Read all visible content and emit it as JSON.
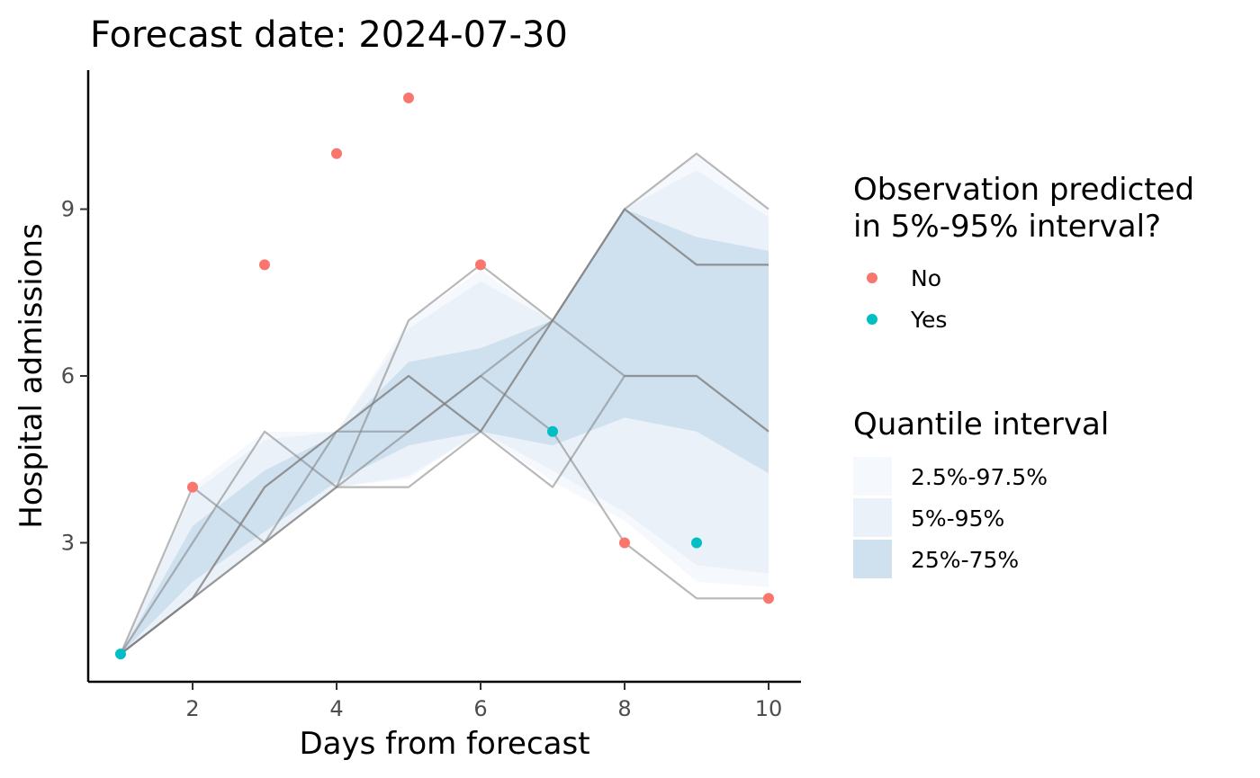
{
  "chart_data": {
    "type": "line",
    "title": "Forecast date: 2024-07-30",
    "xlabel": "Days from forecast",
    "ylabel": "Hospital admissions",
    "xlim": [
      0.55,
      10.45
    ],
    "ylim": [
      0.5,
      11.5
    ],
    "x_ticks": [
      2,
      4,
      6,
      8,
      10
    ],
    "y_ticks": [
      3,
      6,
      9
    ],
    "grid": false,
    "x": [
      1,
      2,
      3,
      4,
      5,
      6,
      7,
      8,
      9,
      10
    ],
    "bands": [
      {
        "name": "2.5%-97.5%",
        "color": "#f5f8fc",
        "lower": [
          1,
          2,
          3,
          4,
          4.15,
          5,
          4.1,
          3.4,
          2.3,
          2.2
        ],
        "upper": [
          1,
          4,
          5,
          5,
          7,
          7.9,
          7,
          9,
          10,
          9
        ]
      },
      {
        "name": "5%-95%",
        "color": "#eaf1f8",
        "lower": [
          1,
          2,
          3,
          4,
          4.2,
          5,
          4.3,
          3.55,
          2.6,
          2.45
        ],
        "upper": [
          1,
          3.9,
          4.85,
          5,
          6.85,
          7.7,
          7,
          9,
          9.7,
          8.85
        ]
      },
      {
        "name": "25%-75%",
        "color": "#cfe0ef",
        "lower": [
          1,
          2.3,
          3.2,
          4.1,
          4.75,
          5,
          4.75,
          5.25,
          5,
          4.25
        ],
        "upper": [
          1,
          3.3,
          4.3,
          4.95,
          6.25,
          6.5,
          7,
          9,
          8.5,
          8.25
        ]
      }
    ],
    "sample_trajectories": [
      [
        1,
        2,
        3,
        4,
        5,
        6,
        7,
        9,
        10,
        9
      ],
      [
        1,
        2,
        4,
        5,
        6,
        5,
        7,
        9,
        8,
        8
      ],
      [
        1,
        3,
        5,
        4,
        4,
        5,
        7,
        9,
        8,
        8
      ],
      [
        1,
        4,
        3,
        4,
        7,
        8,
        7,
        6,
        6,
        5
      ],
      [
        1,
        2,
        3,
        5,
        6,
        5,
        4,
        6,
        6,
        5
      ],
      [
        1,
        2,
        4,
        5,
        5,
        6,
        5,
        3,
        2,
        2
      ]
    ],
    "trajectory_color": "#7f7f7f",
    "observations": [
      {
        "x": 1,
        "y": 1,
        "predicted": "Yes"
      },
      {
        "x": 2,
        "y": 4,
        "predicted": "No"
      },
      {
        "x": 3,
        "y": 8,
        "predicted": "No"
      },
      {
        "x": 4,
        "y": 10,
        "predicted": "No"
      },
      {
        "x": 5,
        "y": 11,
        "predicted": "No"
      },
      {
        "x": 6,
        "y": 8,
        "predicted": "No"
      },
      {
        "x": 7,
        "y": 5,
        "predicted": "Yes"
      },
      {
        "x": 8,
        "y": 3,
        "predicted": "No"
      },
      {
        "x": 9,
        "y": 3,
        "predicted": "Yes"
      },
      {
        "x": 10,
        "y": 2,
        "predicted": "No"
      }
    ],
    "point_colors": {
      "No": "#f8766d",
      "Yes": "#00bfc4"
    },
    "legend": {
      "placement": "right",
      "points": {
        "title_lines": [
          "Observation predicted",
          "in 5%-95% interval?"
        ],
        "items": [
          "No",
          "Yes"
        ]
      },
      "bands": {
        "title": "Quantile interval",
        "items": [
          "2.5%-97.5%",
          "5%-95%",
          "25%-75%"
        ]
      }
    }
  }
}
